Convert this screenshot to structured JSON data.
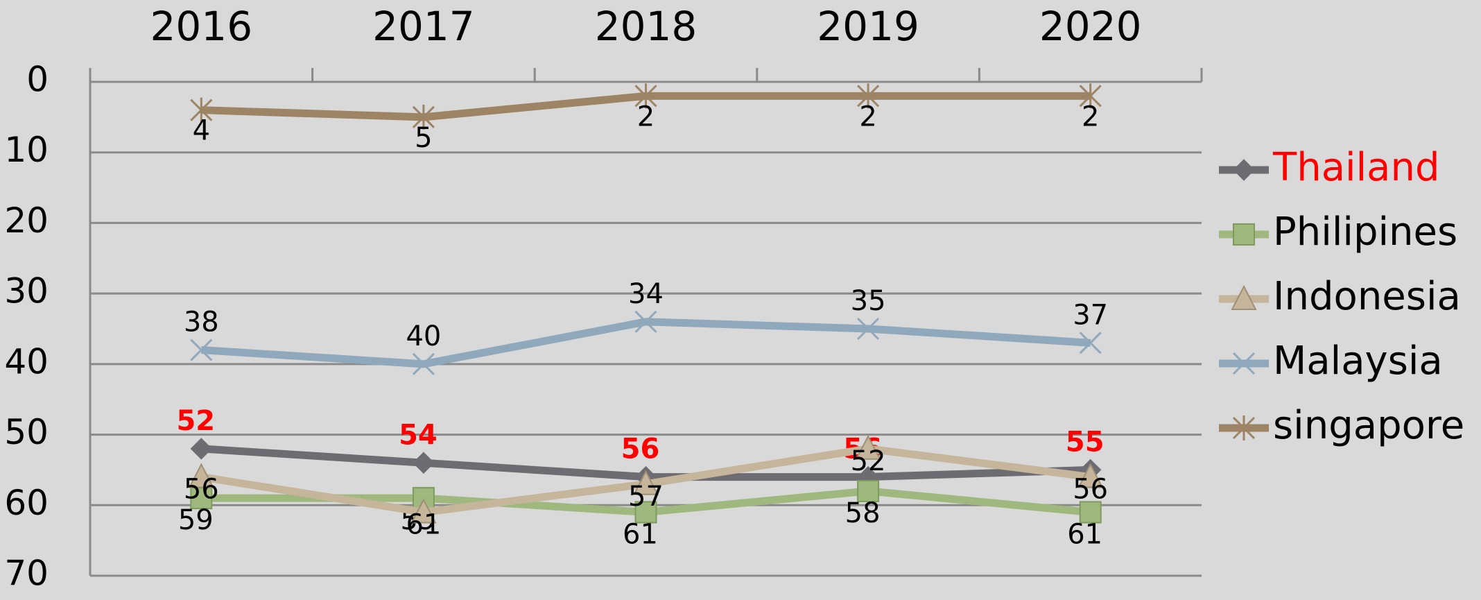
{
  "chart_data": {
    "type": "line",
    "categories": [
      "2016",
      "2017",
      "2018",
      "2019",
      "2020"
    ],
    "ylim": [
      0,
      70
    ],
    "y_reversed": true,
    "yticks": [
      0,
      10,
      20,
      30,
      40,
      50,
      60,
      70
    ],
    "grid": true,
    "legend": "right",
    "series": [
      {
        "name": "Thailand",
        "color": "#6d6c72",
        "marker": "diamond",
        "label_color": "#ff0000",
        "values": [
          52,
          54,
          56,
          56,
          55
        ]
      },
      {
        "name": "Philipines",
        "color": "#9fb87e",
        "marker": "square",
        "label_color": "#000000",
        "values": [
          59,
          59,
          61,
          58,
          61
        ]
      },
      {
        "name": "Indonesia",
        "color": "#c4b59b",
        "marker": "triangle",
        "label_color": "#000000",
        "values": [
          56,
          61,
          57,
          52,
          56
        ]
      },
      {
        "name": "Malaysia",
        "color": "#8fa8bb",
        "marker": "x",
        "label_color": "#000000",
        "values": [
          38,
          40,
          34,
          35,
          37
        ]
      },
      {
        "name": "singapore",
        "color": "#9c8465",
        "marker": "star",
        "label_color": "#000000",
        "values": [
          4,
          5,
          2,
          2,
          2
        ]
      }
    ]
  }
}
